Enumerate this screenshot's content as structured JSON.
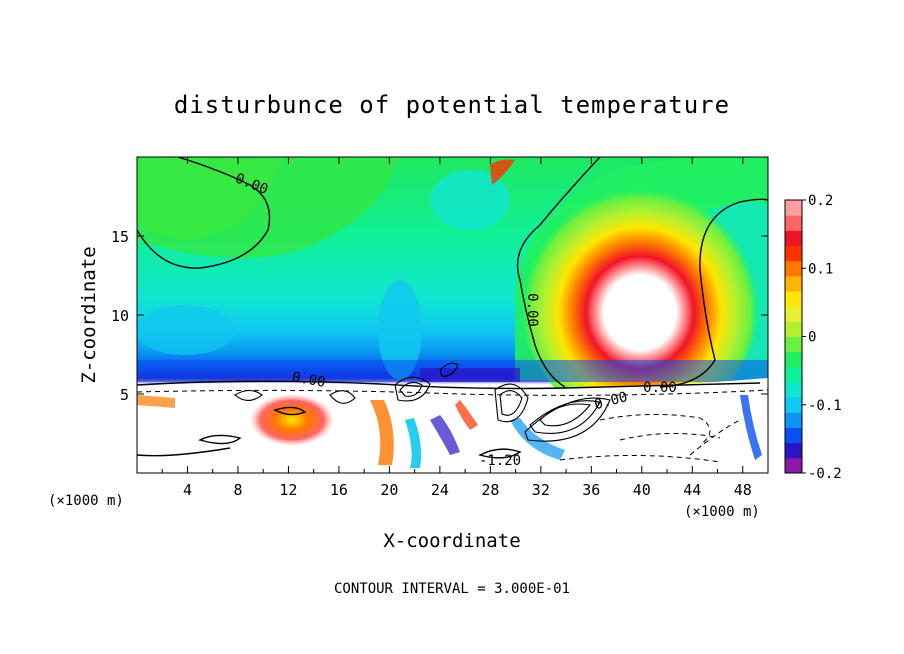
{
  "chart_data": {
    "type": "heatmap",
    "title": "disturbunce of potential temperature",
    "xlabel": "X-coordinate",
    "ylabel": "Z-coordinate",
    "x_unit_left": "(×1000 m)",
    "x_unit_right": "(×1000 m)",
    "xlim": [
      0,
      50
    ],
    "ylim": [
      0,
      20
    ],
    "x_ticks": [
      4,
      8,
      12,
      16,
      20,
      24,
      28,
      32,
      36,
      40,
      44,
      48
    ],
    "y_ticks": [
      5,
      10,
      15
    ],
    "colorbar": {
      "range": [
        -0.2,
        0.2
      ],
      "tick_labels": [
        "0.2",
        "0.1",
        "0",
        "-0.1",
        "-0.2"
      ],
      "tick_values": [
        0.2,
        0.1,
        0,
        -0.1,
        -0.2
      ],
      "colors": [
        "#8c1aa8",
        "#2a14c8",
        "#0a50f0",
        "#0a96f0",
        "#10c8f0",
        "#10e6d2",
        "#10f096",
        "#20f060",
        "#6af040",
        "#b4f030",
        "#e6f030",
        "#ffe600",
        "#ffb400",
        "#ff7800",
        "#ff3200",
        "#f01428",
        "#ff6464",
        "#ffa0a0"
      ]
    },
    "contour_labels": [
      "0.00",
      "0.00",
      "0.00",
      "0.00",
      "0.00",
      "-1.20"
    ],
    "footer": "CONTOUR INTERVAL = 3.000E-01"
  }
}
